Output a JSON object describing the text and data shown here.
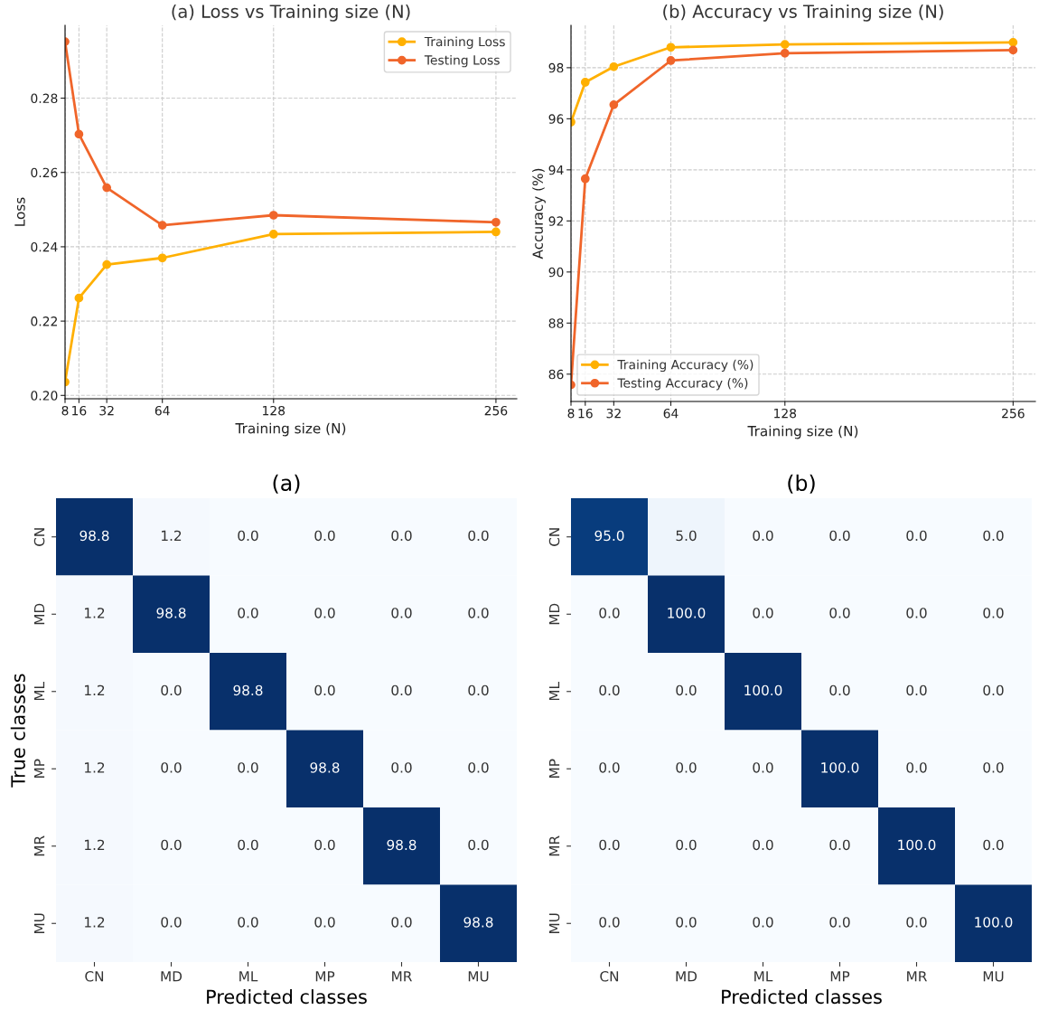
{
  "chart_data": [
    {
      "type": "line",
      "title": "(a) Loss vs Training size (N)",
      "xlabel": "Training size (N)",
      "ylabel": "Loss",
      "x": [
        8,
        16,
        32,
        64,
        128,
        256
      ],
      "xlim": [
        8,
        268
      ],
      "xticks": [
        8,
        16,
        32,
        64,
        128,
        256
      ],
      "ylim": [
        0.1991,
        0.2996
      ],
      "yticks": [
        {
          "value": 0.2,
          "label": "0.20"
        },
        {
          "value": 0.22,
          "label": "0.22"
        },
        {
          "value": 0.24,
          "label": "0.24"
        },
        {
          "value": 0.26,
          "label": "0.26"
        },
        {
          "value": 0.28,
          "label": "0.28"
        }
      ],
      "grid": true,
      "legend": "top right",
      "marker": "circle",
      "line_style": "solid",
      "series": [
        {
          "name": "Training Loss",
          "color": "#ffb000",
          "values": [
            0.2036,
            0.2262,
            0.2352,
            0.237,
            0.2434,
            0.244
          ]
        },
        {
          "name": "Testing Loss",
          "color": "#f0652a",
          "values": [
            0.2952,
            0.2703,
            0.2559,
            0.2458,
            0.2485,
            0.2466
          ]
        }
      ]
    },
    {
      "type": "line",
      "title": "(b) Accuracy vs Training size (N)",
      "xlabel": "Training size (N)",
      "ylabel": "Accuracy (%)",
      "x": [
        8,
        16,
        32,
        64,
        128,
        256
      ],
      "xlim": [
        8,
        268.5
      ],
      "xticks": [
        8,
        16,
        32,
        64,
        128,
        256
      ],
      "ylim": [
        84.93,
        99.66
      ],
      "yticks": [
        86,
        88,
        90,
        92,
        94,
        96,
        98
      ],
      "grid": true,
      "legend": "bottom left",
      "marker": "circle",
      "line_style": "solid",
      "series": [
        {
          "name": "Training Accuracy (%)",
          "color": "#ffb000",
          "values": [
            95.87,
            97.43,
            98.04,
            98.8,
            98.91,
            98.99
          ]
        },
        {
          "name": "Testing Accuracy (%)",
          "color": "#f0652a",
          "values": [
            85.58,
            93.65,
            96.55,
            98.28,
            98.57,
            98.69
          ]
        }
      ]
    },
    {
      "type": "heatmap",
      "title": "(a)",
      "xlabel": "Predicted classes",
      "ylabel": "True classes",
      "categories": [
        "CN",
        "MD",
        "ML",
        "MP",
        "MR",
        "MU"
      ],
      "y_categories": [
        "CN",
        "MD",
        "ML",
        "MP",
        "MR",
        "MU"
      ],
      "cells": [
        [
          98.8,
          1.2,
          0,
          0,
          0,
          0
        ],
        [
          1.2,
          98.8,
          0,
          0,
          0,
          0
        ],
        [
          1.2,
          0,
          98.8,
          0,
          0,
          0
        ],
        [
          1.2,
          0,
          0,
          98.8,
          0,
          0
        ],
        [
          1.2,
          0,
          0,
          0,
          98.8,
          0
        ],
        [
          1.2,
          0,
          0,
          0,
          0,
          98.8
        ]
      ],
      "cell_labels": [
        [
          "98.8",
          "1.2",
          "0.0",
          "0.0",
          "0.0",
          "0.0"
        ],
        [
          "1.2",
          "98.8",
          "0.0",
          "0.0",
          "0.0",
          "0.0"
        ],
        [
          "1.2",
          "0.0",
          "98.8",
          "0.0",
          "0.0",
          "0.0"
        ],
        [
          "1.2",
          "0.0",
          "0.0",
          "98.8",
          "0.0",
          "0.0"
        ],
        [
          "1.2",
          "0.0",
          "0.0",
          "0.0",
          "98.8",
          "0.0"
        ],
        [
          "1.2",
          "0.0",
          "0.0",
          "0.0",
          "0.0",
          "98.8"
        ]
      ]
    },
    {
      "type": "heatmap",
      "title": "(b)",
      "xlabel": "Predicted classes",
      "categories": [
        "CN",
        "MD",
        "ML",
        "MP",
        "MR",
        "MU"
      ],
      "y_categories": [
        "CN",
        "MD",
        "ML",
        "MP",
        "MR",
        "MU"
      ],
      "cells": [
        [
          95,
          5,
          0,
          0,
          0,
          0
        ],
        [
          0,
          100,
          0,
          0,
          0,
          0
        ],
        [
          0,
          0,
          100,
          0,
          0,
          0
        ],
        [
          0,
          0,
          0,
          100,
          0,
          0
        ],
        [
          0,
          0,
          0,
          0,
          100,
          0
        ],
        [
          0,
          0,
          0,
          0,
          0,
          100
        ]
      ],
      "cell_labels": [
        [
          "95.0",
          "5.0",
          "0.0",
          "0.0",
          "0.0",
          "0.0"
        ],
        [
          "0.0",
          "100.0",
          "0.0",
          "0.0",
          "0.0",
          "0.0"
        ],
        [
          "0.0",
          "0.0",
          "100.0",
          "0.0",
          "0.0",
          "0.0"
        ],
        [
          "0.0",
          "0.0",
          "0.0",
          "100.0",
          "0.0",
          "0.0"
        ],
        [
          "0.0",
          "0.0",
          "0.0",
          "0.0",
          "100.0",
          "0.0"
        ],
        [
          "0.0",
          "0.0",
          "0.0",
          "0.0",
          "0.0",
          "100.0"
        ]
      ]
    }
  ]
}
